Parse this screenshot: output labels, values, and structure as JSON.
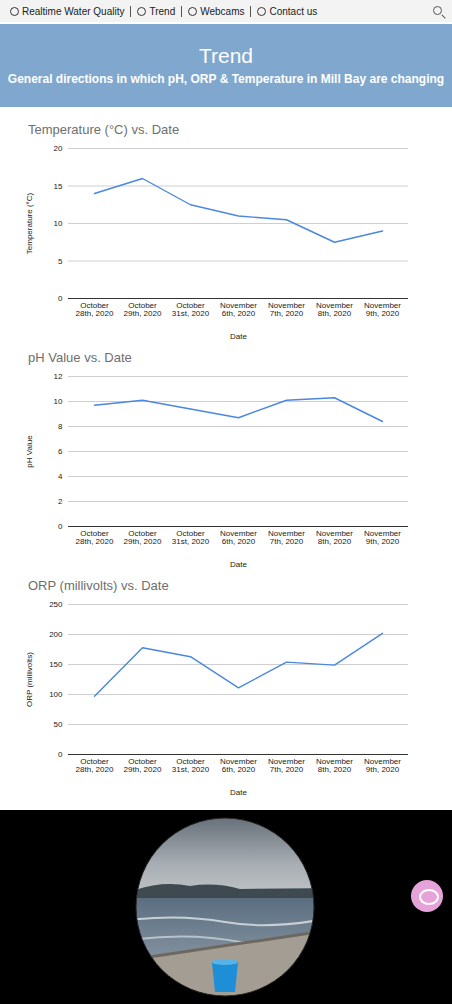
{
  "nav": {
    "items": [
      "Realtime Water Quality",
      "Trend",
      "Webcams",
      "Contact us"
    ]
  },
  "header": {
    "title": "Trend",
    "subtitle": "General directions in which pH, ORP & Temperature in Mill Bay are changing"
  },
  "chart_data": [
    {
      "type": "line",
      "title": "Temperature (°C) vs. Date",
      "xlabel": "Date",
      "ylabel": "Temperature (°C)",
      "categories": [
        "October 28th, 2020",
        "October 29th, 2020",
        "October 31st, 2020",
        "November 6th, 2020",
        "November 7th, 2020",
        "November 8th, 2020",
        "November 9th, 2020"
      ],
      "values": [
        14,
        16,
        12.5,
        11,
        10.5,
        7.5,
        9
      ],
      "color": "#4a87e0",
      "ylim": [
        0,
        20
      ],
      "yticks": [
        0,
        5,
        10,
        15,
        20
      ],
      "grid": true
    },
    {
      "type": "line",
      "title": "pH Value vs. Date",
      "xlabel": "Date",
      "ylabel": "pH Value",
      "categories": [
        "October 28th, 2020",
        "October 29th, 2020",
        "October 31st, 2020",
        "November 6th, 2020",
        "November 7th, 2020",
        "November 8th, 2020",
        "November 9th, 2020"
      ],
      "values": [
        9.7,
        10.1,
        9.4,
        8.7,
        10.1,
        10.3,
        8.4
      ],
      "color": "#4a87e0",
      "ylim": [
        0,
        12
      ],
      "yticks": [
        0,
        2,
        4,
        6,
        8,
        10,
        12
      ],
      "grid": true
    },
    {
      "type": "line",
      "title": "ORP (millivolts) vs. Date",
      "xlabel": "Date",
      "ylabel": "ORP (millivolts)",
      "categories": [
        "October 28th, 2020",
        "October 29th, 2020",
        "October 31st, 2020",
        "November 6th, 2020",
        "November 7th, 2020",
        "November 8th, 2020",
        "November 9th, 2020"
      ],
      "values": [
        97,
        178,
        163,
        111,
        154,
        149,
        202
      ],
      "color": "#4a87e0",
      "ylim": [
        0,
        250
      ],
      "yticks": [
        0,
        50,
        100,
        150,
        200,
        250
      ],
      "grid": true
    }
  ]
}
